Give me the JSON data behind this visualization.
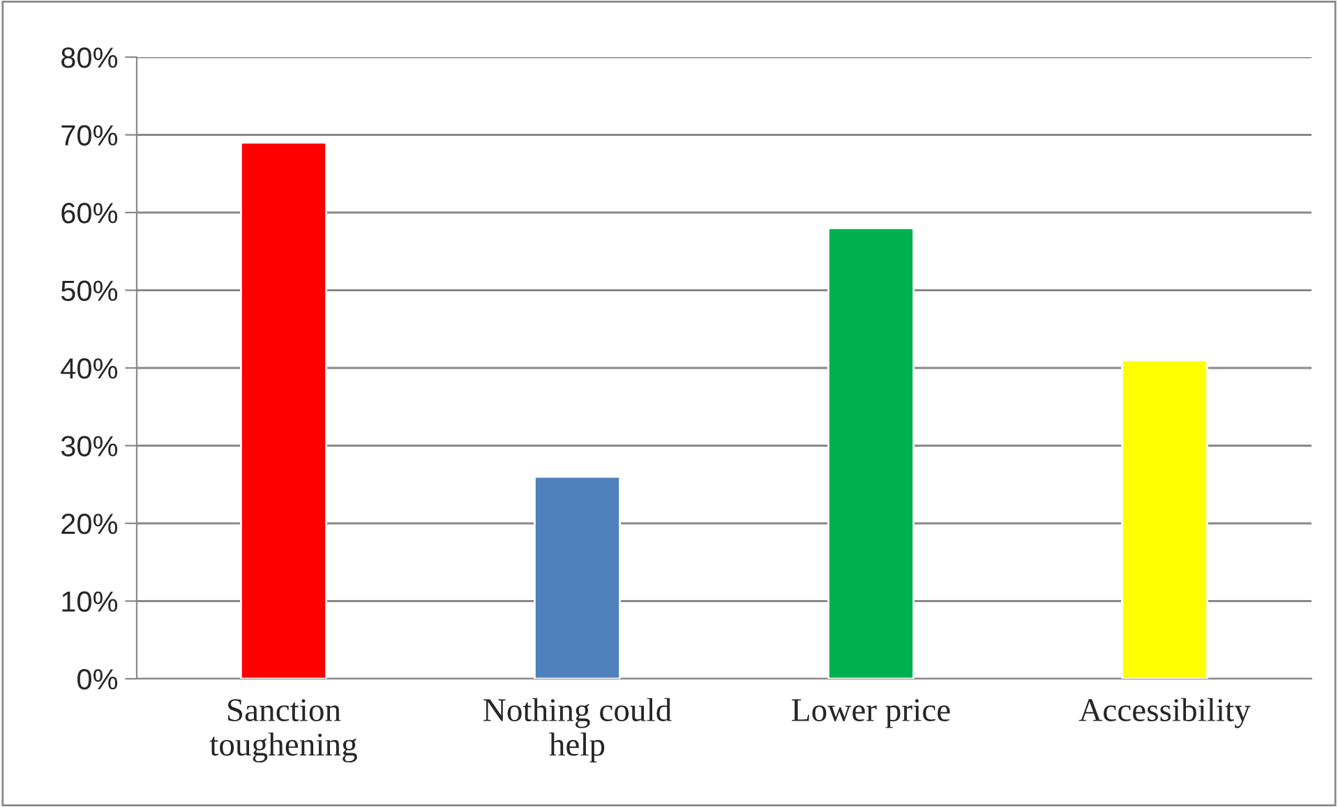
{
  "chart_data": {
    "type": "bar",
    "categories": [
      "Sanction\ntoughening",
      "Nothing could\nhelp",
      "Lower price",
      "Accessibility"
    ],
    "values": [
      69,
      26,
      58,
      41
    ],
    "colors": [
      "#ff0000",
      "#4f81bd",
      "#00b050",
      "#ffff00"
    ],
    "ylim": [
      0,
      80
    ],
    "yticks": [
      {
        "value": 0,
        "label": "0%"
      },
      {
        "value": 10,
        "label": "10%"
      },
      {
        "value": 20,
        "label": "20%"
      },
      {
        "value": 30,
        "label": "30%"
      },
      {
        "value": 40,
        "label": "40%"
      },
      {
        "value": 50,
        "label": "50%"
      },
      {
        "value": 60,
        "label": "60%"
      },
      {
        "value": 70,
        "label": "70%"
      },
      {
        "value": 80,
        "label": "80%"
      }
    ],
    "grid": "y",
    "legend": false
  }
}
